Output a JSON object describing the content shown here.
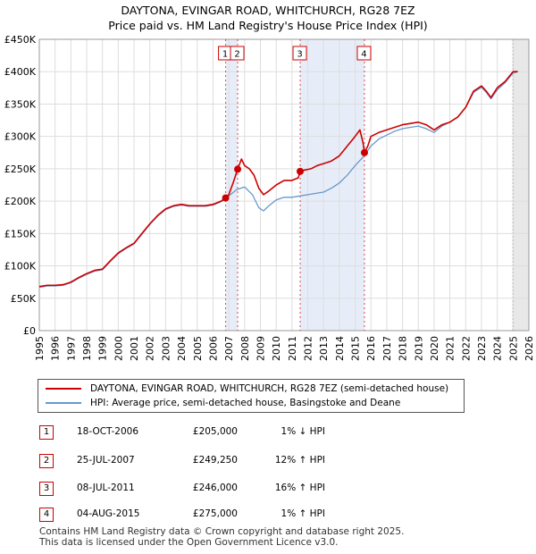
{
  "title": "DAYTONA, EVINGAR ROAD, WHITCHURCH, RG28 7EZ",
  "subtitle": "Price paid vs. HM Land Registry's House Price Index (HPI)",
  "colors": {
    "property": "#cc0000",
    "hpi": "#6699cc",
    "forecast_band": "#e8e8e8",
    "sale_band": "#dde6f5"
  },
  "chart_data": {
    "type": "line",
    "title": "Price paid vs. HM Land Registry's House Price Index (HPI)",
    "xlabel": "",
    "ylabel": "",
    "xlim": [
      1995,
      2026
    ],
    "ylim": [
      0,
      450000
    ],
    "y_ticks": [
      0,
      50000,
      100000,
      150000,
      200000,
      250000,
      300000,
      350000,
      400000,
      450000
    ],
    "y_tick_labels": [
      "£0",
      "£50K",
      "£100K",
      "£150K",
      "£200K",
      "£250K",
      "£300K",
      "£350K",
      "£400K",
      "£450K"
    ],
    "x_ticks": [
      1995,
      1996,
      1997,
      1998,
      1999,
      2000,
      2001,
      2002,
      2003,
      2004,
      2005,
      2006,
      2007,
      2008,
      2009,
      2010,
      2011,
      2012,
      2013,
      2014,
      2015,
      2016,
      2017,
      2018,
      2019,
      2020,
      2021,
      2022,
      2023,
      2024,
      2025,
      2026
    ],
    "grid": true,
    "forecast_start": 2025.0,
    "series": [
      {
        "name": "DAYTONA, EVINGAR ROAD, WHITCHURCH, RG28 7EZ (semi-detached house)",
        "color": "#cc0000",
        "x": [
          1995.0,
          1995.5,
          1996.0,
          1996.5,
          1997.0,
          1997.5,
          1998.0,
          1998.5,
          1999.0,
          1999.5,
          2000.0,
          2000.5,
          2001.0,
          2001.5,
          2002.0,
          2002.5,
          2003.0,
          2003.5,
          2004.0,
          2004.5,
          2005.0,
          2005.5,
          2006.0,
          2006.5,
          2006.8,
          2007.0,
          2007.3,
          2007.56,
          2007.8,
          2008.0,
          2008.3,
          2008.6,
          2008.9,
          2009.2,
          2009.5,
          2010.0,
          2010.5,
          2011.0,
          2011.4,
          2011.52,
          2011.8,
          2012.2,
          2012.6,
          2013.0,
          2013.5,
          2014.0,
          2014.5,
          2015.0,
          2015.3,
          2015.5,
          2015.59,
          2015.8,
          2016.0,
          2016.5,
          2017.0,
          2017.5,
          2018.0,
          2018.5,
          2019.0,
          2019.5,
          2020.0,
          2020.5,
          2021.0,
          2021.5,
          2022.0,
          2022.5,
          2023.0,
          2023.3,
          2023.6,
          2024.0,
          2024.5,
          2025.0,
          2025.3
        ],
        "values": [
          68000,
          70000,
          70000,
          71000,
          75000,
          82000,
          88000,
          93000,
          95000,
          108000,
          120000,
          128000,
          135000,
          150000,
          165000,
          178000,
          188000,
          193000,
          195000,
          193000,
          193000,
          193000,
          195000,
          200000,
          205000,
          210000,
          230000,
          249250,
          265000,
          255000,
          250000,
          240000,
          220000,
          210000,
          215000,
          225000,
          232000,
          232000,
          236000,
          246000,
          248000,
          250000,
          255000,
          258000,
          262000,
          270000,
          285000,
          300000,
          310000,
          290000,
          275000,
          285000,
          300000,
          306000,
          310000,
          314000,
          318000,
          320000,
          322000,
          318000,
          310000,
          318000,
          322000,
          330000,
          345000,
          370000,
          378000,
          370000,
          360000,
          375000,
          385000,
          400000,
          400000
        ],
        "markers": [
          {
            "label": "1",
            "x": 2006.8,
            "value": 205000
          },
          {
            "label": "2",
            "x": 2007.56,
            "value": 249250
          },
          {
            "label": "3",
            "x": 2011.52,
            "value": 246000
          },
          {
            "label": "4",
            "x": 2015.59,
            "value": 275000
          }
        ]
      },
      {
        "name": "HPI: Average price, semi-detached house, Basingstoke and Deane",
        "color": "#6699cc",
        "x": [
          1995.0,
          1995.5,
          1996.0,
          1996.5,
          1997.0,
          1997.5,
          1998.0,
          1998.5,
          1999.0,
          1999.5,
          2000.0,
          2000.5,
          2001.0,
          2001.5,
          2002.0,
          2002.5,
          2003.0,
          2003.5,
          2004.0,
          2004.5,
          2005.0,
          2005.5,
          2006.0,
          2006.5,
          2006.8,
          2007.0,
          2007.5,
          2008.0,
          2008.5,
          2008.9,
          2009.2,
          2009.5,
          2010.0,
          2010.5,
          2011.0,
          2011.5,
          2012.0,
          2012.5,
          2013.0,
          2013.5,
          2014.0,
          2014.5,
          2015.0,
          2015.5,
          2016.0,
          2016.5,
          2017.0,
          2017.5,
          2018.0,
          2018.5,
          2019.0,
          2019.5,
          2020.0,
          2020.5,
          2021.0,
          2021.5,
          2022.0,
          2022.5,
          2023.0,
          2023.3,
          2023.6,
          2024.0,
          2024.5,
          2025.0,
          2025.3
        ],
        "values": [
          67000,
          69000,
          69000,
          70000,
          74000,
          81000,
          87000,
          92000,
          94000,
          107000,
          119000,
          127000,
          134000,
          149000,
          164000,
          177000,
          187000,
          192000,
          194000,
          192000,
          192000,
          192000,
          194000,
          199000,
          203000,
          208000,
          218000,
          222000,
          210000,
          190000,
          185000,
          192000,
          202000,
          206000,
          206000,
          208000,
          210000,
          212000,
          214000,
          220000,
          228000,
          240000,
          255000,
          268000,
          285000,
          296000,
          302000,
          308000,
          312000,
          314000,
          316000,
          312000,
          306000,
          316000,
          322000,
          330000,
          345000,
          368000,
          376000,
          368000,
          358000,
          372000,
          383000,
          398000,
          400000
        ]
      }
    ],
    "legend": [
      {
        "label": "DAYTONA, EVINGAR ROAD, WHITCHURCH, RG28 7EZ (semi-detached house)",
        "color": "#cc0000"
      },
      {
        "label": "HPI: Average price, semi-detached house, Basingstoke and Deane",
        "color": "#6699cc"
      }
    ]
  },
  "sales": [
    {
      "num": "1",
      "date": "18-OCT-2006",
      "price": "£205,000",
      "hpi": "1% ↓ HPI"
    },
    {
      "num": "2",
      "date": "25-JUL-2007",
      "price": "£249,250",
      "hpi": "12% ↑ HPI"
    },
    {
      "num": "3",
      "date": "08-JUL-2011",
      "price": "£246,000",
      "hpi": "16% ↑ HPI"
    },
    {
      "num": "4",
      "date": "04-AUG-2015",
      "price": "£275,000",
      "hpi": "1% ↑ HPI"
    }
  ],
  "footer": {
    "line1": "Contains HM Land Registry data © Crown copyright and database right 2025.",
    "line2": "This data is licensed under the Open Government Licence v3.0."
  }
}
